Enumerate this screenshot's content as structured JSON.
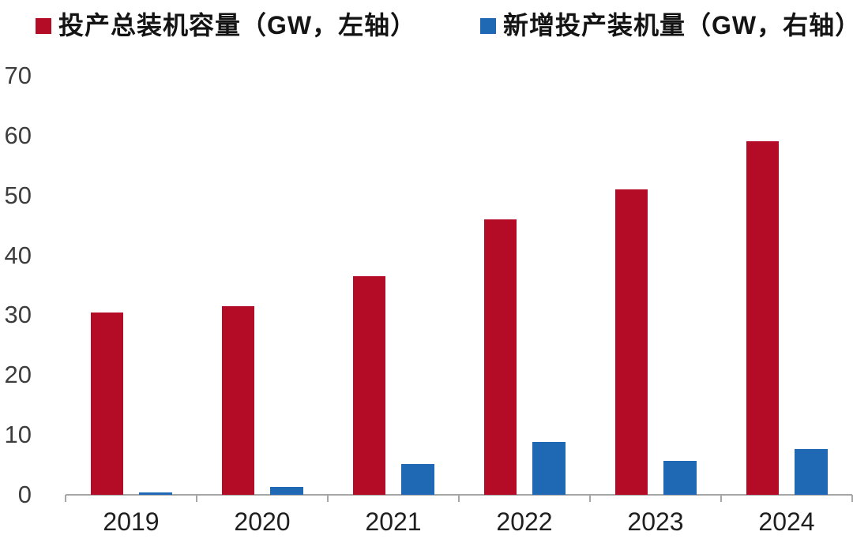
{
  "chart_data": {
    "type": "bar",
    "title": "",
    "categories": [
      "2019",
      "2020",
      "2021",
      "2022",
      "2023",
      "2024"
    ],
    "series": [
      {
        "name": "投产总装机容量（GW，左轴）",
        "axis": "left",
        "color": "#b40c26",
        "values": [
          30.5,
          31.5,
          36.5,
          46,
          51,
          59
        ]
      },
      {
        "name": "新增投产装机量（GW，右轴）",
        "axis": "right",
        "color": "#1f69b4",
        "values": [
          0.4,
          1.3,
          5.2,
          8.8,
          5.7,
          7.7
        ],
        "values_scale_note": "right-axis tick labels are not visible in the image; values are read against the left axis scale"
      }
    ],
    "left_axis": {
      "ticks": [
        0,
        10,
        20,
        30,
        40,
        50,
        60,
        70
      ],
      "range": [
        0,
        70
      ]
    },
    "right_axis": {
      "labels_visible": false
    },
    "xlabel": "",
    "ylabel": "",
    "gridlines": false,
    "legend_position": "top",
    "colors": {
      "bar_total": "#b40c26",
      "bar_new": "#1f69b4",
      "axis_line": "#a6a6a6",
      "tick_text": "#3d3d3d"
    }
  }
}
